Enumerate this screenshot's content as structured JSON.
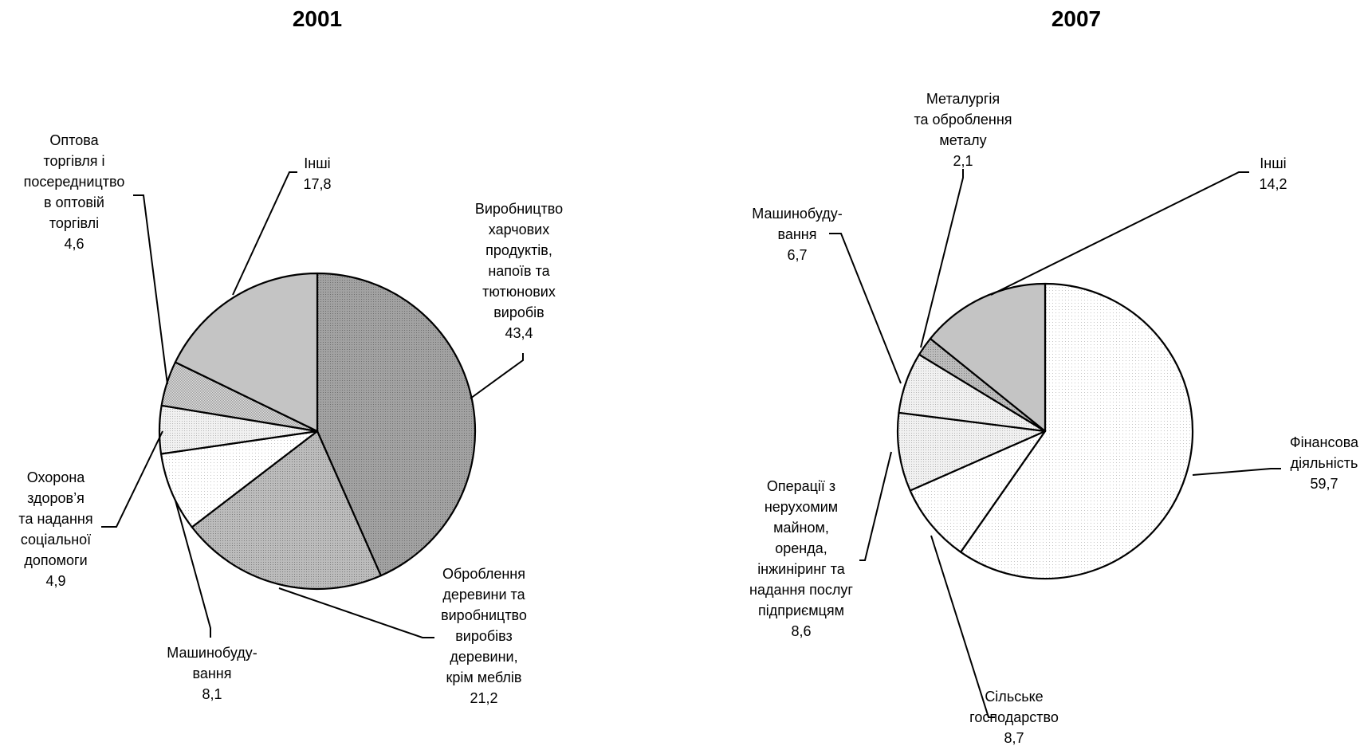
{
  "chart_data": [
    {
      "type": "pie",
      "title": "2001",
      "slices": [
        {
          "label": "Виробництво харчових продуктів, напоїв та тютюнових виробів",
          "label_lines": [
            "Виробництво",
            "харчових",
            "продуктів,",
            "напоїв та",
            "тютюнових",
            "виробів"
          ],
          "value": 43.4,
          "value_text": "43,4",
          "fill": "#9a9a9a",
          "texture": "dense-dots"
        },
        {
          "label": "Оброблення деревини та виробництво виробів з деревини, крім меблів",
          "label_lines": [
            "Оброблення",
            "деревини та",
            "виробництво",
            "виробівз",
            "деревини,",
            "крім меблів"
          ],
          "value": 21.2,
          "value_text": "21,2",
          "fill": "#b0b0b0",
          "texture": "dots"
        },
        {
          "label": "Машинобудування",
          "label_lines": [
            "Машинобуду-",
            "вання"
          ],
          "value": 8.1,
          "value_text": "8,1",
          "fill": "#fbfbfb",
          "texture": "sparse-dots"
        },
        {
          "label": "Охорона здоров’я та надання соціальної допомоги",
          "label_lines": [
            "Охорона",
            "здоров’я",
            "та надання",
            "соціальної",
            "допомоги"
          ],
          "value": 4.9,
          "value_text": "4,9",
          "fill": "#ececec",
          "texture": "light-dots"
        },
        {
          "label": "Оптова торгівля і посередництво в оптовій торгівлі",
          "label_lines": [
            "Оптова",
            "торгівля і",
            "посередництво",
            "в оптовій",
            "торгівлі"
          ],
          "value": 4.6,
          "value_text": "4,6",
          "fill": "#d2d2d2",
          "texture": "checker"
        },
        {
          "label": "Інші",
          "label_lines": [
            "Інші"
          ],
          "value": 17.8,
          "value_text": "17,8",
          "fill": "#c4c4c4",
          "texture": "solid"
        }
      ]
    },
    {
      "type": "pie",
      "title": "2007",
      "slices": [
        {
          "label": "Фінансова діяльність",
          "label_lines": [
            "Фінансова",
            "діяльність"
          ],
          "value": 59.7,
          "value_text": "59,7",
          "fill": "#f8f8f8",
          "texture": "sparse-dots"
        },
        {
          "label": "Сільське господарство",
          "label_lines": [
            "Сільське",
            "господарство"
          ],
          "value": 8.7,
          "value_text": "8,7",
          "fill": "#ffffff",
          "texture": "sparse-dots"
        },
        {
          "label": "Операції з нерухомим майном, оренда, інжиніринг та надання послуг підприємцям",
          "label_lines": [
            "Операції з",
            "нерухомим",
            "майном,",
            "оренда,",
            "інжиніринг та",
            "надання послуг",
            "підприємцям"
          ],
          "value": 8.6,
          "value_text": "8,6",
          "fill": "#e6e6e6",
          "texture": "light-dots"
        },
        {
          "label": "Машинобудування",
          "label_lines": [
            "Машинобуду-",
            "вання"
          ],
          "value": 6.7,
          "value_text": "6,7",
          "fill": "#e0e0e0",
          "texture": "light-dots"
        },
        {
          "label": "Металургія та оброблення металу",
          "label_lines": [
            "Металургія",
            "та оброблення",
            "металу"
          ],
          "value": 2.1,
          "value_text": "2,1",
          "fill": "#d4d4d4",
          "texture": "dots"
        },
        {
          "label": "Інші",
          "label_lines": [
            "Інші"
          ],
          "value": 14.2,
          "value_text": "14,2",
          "fill": "#c4c4c4",
          "texture": "solid"
        }
      ]
    }
  ]
}
